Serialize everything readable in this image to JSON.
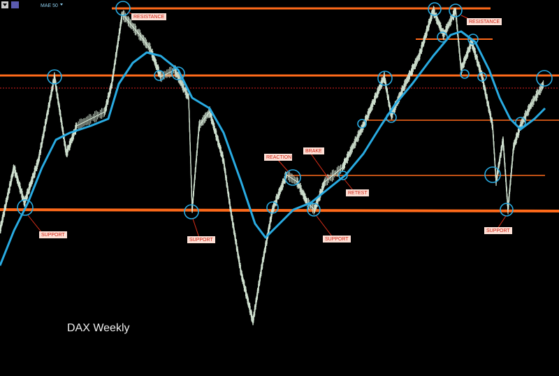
{
  "toolbar": {
    "indicator": "MAE 50"
  },
  "watermark": "DAX Weekly",
  "annotations": [
    "RESISTANCE",
    "RESISTANCE",
    "REACTION",
    "BRAKE",
    "RETEST",
    "SUPPORT",
    "SUPPORT",
    "SUPPORT",
    "SUPPORT"
  ]
}
